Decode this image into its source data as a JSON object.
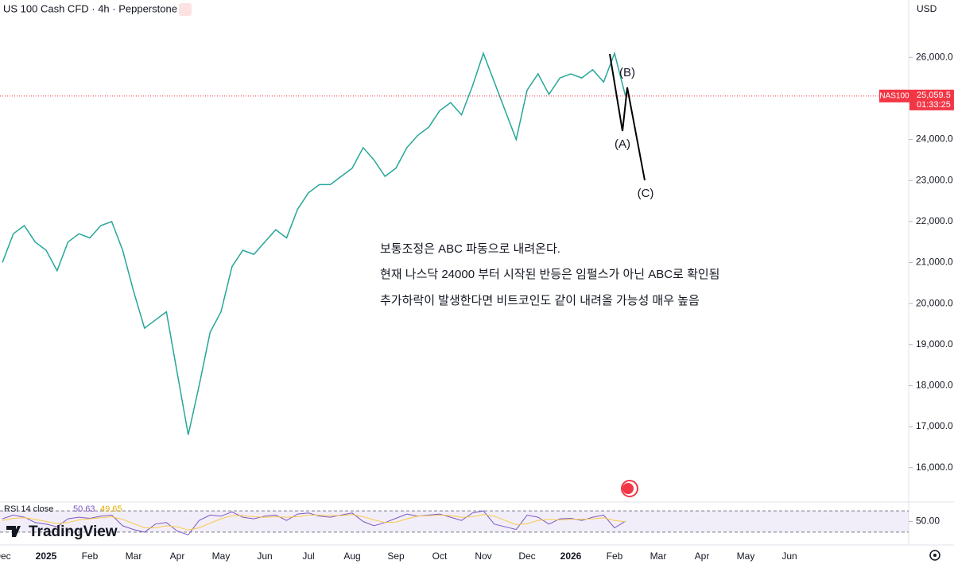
{
  "header": {
    "title": "US 100 Cash CFD · 4h · Pepperstone",
    "currency": "USD"
  },
  "chart_data": [
    {
      "type": "line",
      "categories": [
        "Dec",
        null,
        null,
        null,
        "2025",
        null,
        null,
        null,
        "Feb",
        null,
        null,
        null,
        "Mar",
        null,
        null,
        null,
        "Apr",
        null,
        null,
        null,
        "May",
        null,
        null,
        null,
        "Jun",
        null,
        null,
        null,
        "Jul",
        null,
        null,
        null,
        "Aug",
        null,
        null,
        null,
        "Sep",
        null,
        null,
        null,
        "Oct",
        null,
        null,
        null,
        "Nov",
        null,
        null,
        null,
        "Dec",
        null,
        null,
        null,
        "2026",
        null,
        null,
        null,
        "Feb",
        null,
        null,
        null,
        "Mar",
        null,
        null,
        null,
        "Apr",
        null,
        null,
        null,
        "May",
        null,
        null,
        null,
        "Jun",
        null
      ],
      "series": [
        {
          "name": "NAS100",
          "color": "#26a69a",
          "values": [
            21000,
            21700,
            21900,
            21500,
            21300,
            20800,
            21500,
            21700,
            21600,
            21900,
            22000,
            21300,
            20300,
            19400,
            19600,
            19800,
            18300,
            16800,
            18000,
            19300,
            19800,
            20900,
            21300,
            21200,
            21500,
            21800,
            21600,
            22300,
            22700,
            22900,
            22900,
            23100,
            23300,
            23800,
            23500,
            23100,
            23300,
            23800,
            24100,
            24300,
            24700,
            24900,
            24600,
            25300,
            26100,
            25400,
            24700,
            24000,
            25200,
            25600,
            25100,
            25500,
            25600,
            25500,
            25700,
            25400,
            26100,
            25059.5,
            null,
            null,
            null,
            null,
            null,
            null,
            null,
            null,
            null,
            null,
            null,
            null,
            null,
            null,
            null,
            null
          ]
        }
      ],
      "ylim": [
        15200,
        27400
      ],
      "yticks": [
        {
          "value": 16000,
          "label": "16,000.0"
        },
        {
          "value": 17000,
          "label": "17,000.0"
        },
        {
          "value": 18000,
          "label": "18,000.0"
        },
        {
          "value": 19000,
          "label": "19,000.0"
        },
        {
          "value": 20000,
          "label": "20,000.0"
        },
        {
          "value": 21000,
          "label": "21,000.0"
        },
        {
          "value": 22000,
          "label": "22,000.0"
        },
        {
          "value": 23000,
          "label": "23,000.0"
        },
        {
          "value": 24000,
          "label": "24,000.0"
        },
        {
          "value": 25000,
          "label": "25,000.0"
        },
        {
          "value": 26000,
          "label": "26,000.0"
        }
      ],
      "last_price": {
        "value": 25059.5,
        "label": "25,059.5"
      },
      "countdown": "01:33:25",
      "wave_labels": [
        "(A)",
        "(B)",
        "(C)"
      ],
      "annotations": [
        "보통조정은 ABC 파동으로 내려온다.",
        "현재 나스닥 24000 부터 시작된 반등은 임펄스가 아닌 ABC로 확인됨",
        "추가하락이 발생한다면 비트코인도 같이 내려올 가능성 매우 높음"
      ]
    },
    {
      "type": "line",
      "title": "RSI 14 close",
      "legend_values": [
        50.63,
        49.65
      ],
      "series": [
        {
          "color": "#7e57c2",
          "values": [
            55,
            62,
            58,
            48,
            45,
            40,
            55,
            58,
            56,
            60,
            62,
            42,
            35,
            30,
            45,
            48,
            32,
            25,
            52,
            62,
            60,
            68,
            58,
            55,
            60,
            62,
            52,
            64,
            66,
            60,
            58,
            62,
            66,
            50,
            42,
            48,
            56,
            64,
            60,
            62,
            64,
            58,
            52,
            66,
            70,
            45,
            40,
            35,
            62,
            58,
            45,
            55,
            56,
            52,
            58,
            62,
            38,
            50.63,
            null,
            null,
            null,
            null,
            null,
            null,
            null,
            null,
            null,
            null,
            null,
            null,
            null,
            null,
            null,
            null
          ]
        },
        {
          "color": "#f7c948",
          "values": [
            52,
            56,
            57,
            54,
            50,
            46,
            48,
            53,
            55,
            57,
            59,
            54,
            46,
            38,
            38,
            42,
            40,
            34,
            38,
            47,
            55,
            61,
            61,
            59,
            58,
            59,
            58,
            59,
            62,
            62,
            61,
            61,
            63,
            59,
            53,
            48,
            49,
            55,
            60,
            61,
            62,
            61,
            58,
            59,
            63,
            60,
            52,
            44,
            46,
            52,
            54,
            53,
            54,
            54,
            55,
            57,
            52,
            49.65,
            null,
            null,
            null,
            null,
            null,
            null,
            null,
            null,
            null,
            null,
            null,
            null,
            null,
            null,
            null,
            null
          ]
        }
      ],
      "ylim": [
        12,
        85
      ],
      "yticks": [
        {
          "value": 50,
          "label": "50.00"
        }
      ],
      "bands": [
        30,
        70
      ]
    }
  ]
}
